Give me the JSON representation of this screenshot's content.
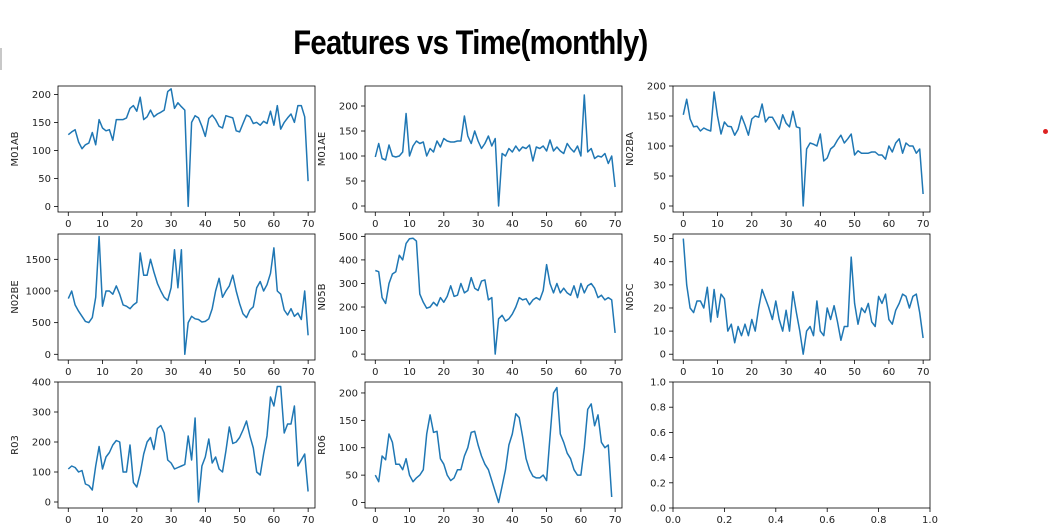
{
  "title": "Features vs Time(monthly)",
  "colors": {
    "line": "#1f77b4",
    "axis": "#000000",
    "accent_dot": "#dd2222"
  },
  "chart_data": [
    {
      "type": "line",
      "ylabel": "M01AB",
      "xlim": [
        -3,
        72
      ],
      "ylim": [
        -10,
        215
      ],
      "xticks": [
        0,
        10,
        20,
        30,
        40,
        50,
        60,
        70
      ],
      "yticks": [
        0,
        50,
        100,
        150,
        200
      ],
      "values": [
        128,
        133,
        137,
        115,
        103,
        110,
        113,
        132,
        110,
        155,
        140,
        135,
        137,
        118,
        155,
        155,
        155,
        158,
        175,
        180,
        170,
        195,
        155,
        160,
        172,
        160,
        165,
        168,
        172,
        205,
        210,
        175,
        185,
        178,
        172,
        0,
        150,
        162,
        158,
        143,
        125,
        157,
        163,
        155,
        143,
        140,
        162,
        160,
        158,
        135,
        133,
        148,
        163,
        160,
        148,
        150,
        145,
        152,
        148,
        170,
        145,
        180,
        138,
        150,
        158,
        165,
        150,
        180,
        180,
        160,
        45
      ]
    },
    {
      "type": "line",
      "ylabel": "M01AE",
      "xlim": [
        -3,
        72
      ],
      "ylim": [
        -12,
        240
      ],
      "xticks": [
        0,
        10,
        20,
        30,
        40,
        50,
        60,
        70
      ],
      "yticks": [
        0,
        50,
        100,
        150,
        200
      ],
      "values": [
        98,
        125,
        95,
        92,
        122,
        100,
        98,
        100,
        108,
        185,
        100,
        120,
        130,
        125,
        128,
        100,
        115,
        108,
        130,
        118,
        135,
        130,
        128,
        128,
        130,
        130,
        180,
        140,
        125,
        150,
        130,
        115,
        125,
        140,
        120,
        135,
        0,
        105,
        100,
        115,
        108,
        120,
        110,
        118,
        115,
        122,
        90,
        118,
        115,
        120,
        110,
        132,
        110,
        118,
        110,
        105,
        125,
        115,
        108,
        120,
        100,
        222,
        108,
        115,
        95,
        100,
        98,
        105,
        85,
        100,
        38
      ]
    },
    {
      "type": "line",
      "ylabel": "N02BA",
      "xlim": [
        -3,
        72
      ],
      "ylim": [
        -10,
        200
      ],
      "xticks": [
        0,
        10,
        20,
        30,
        40,
        50,
        60,
        70
      ],
      "yticks": [
        0,
        50,
        100,
        150,
        200
      ],
      "values": [
        152,
        178,
        145,
        132,
        133,
        125,
        130,
        127,
        125,
        190,
        150,
        120,
        140,
        133,
        132,
        118,
        128,
        150,
        135,
        118,
        145,
        150,
        148,
        170,
        140,
        148,
        148,
        138,
        128,
        152,
        138,
        132,
        158,
        132,
        130,
        0,
        95,
        105,
        103,
        100,
        120,
        75,
        80,
        95,
        100,
        110,
        118,
        105,
        112,
        120,
        85,
        92,
        88,
        88,
        88,
        90,
        90,
        85,
        85,
        78,
        100,
        90,
        105,
        112,
        88,
        105,
        100,
        100,
        88,
        95,
        20
      ]
    },
    {
      "type": "line",
      "ylabel": "N02BE",
      "xlim": [
        -3,
        72
      ],
      "ylim": [
        -90,
        1900
      ],
      "xticks": [
        0,
        10,
        20,
        30,
        40,
        50,
        60,
        70
      ],
      "yticks": [
        0,
        500,
        1000,
        1500
      ],
      "values": [
        880,
        1000,
        780,
        680,
        600,
        520,
        500,
        580,
        900,
        1860,
        760,
        1000,
        1000,
        950,
        1080,
        950,
        780,
        760,
        720,
        780,
        820,
        1600,
        1250,
        1250,
        1500,
        1300,
        1120,
        1000,
        900,
        850,
        1050,
        1650,
        1050,
        1650,
        0,
        500,
        600,
        560,
        550,
        510,
        520,
        560,
        720,
        1000,
        1200,
        900,
        1000,
        1080,
        1250,
        1000,
        800,
        640,
        580,
        700,
        750,
        1050,
        1150,
        1000,
        1100,
        1280,
        1680,
        1000,
        950,
        700,
        620,
        720,
        600,
        650,
        550,
        1000,
        300
      ]
    },
    {
      "type": "line",
      "ylabel": "N05B",
      "xlim": [
        -3,
        72
      ],
      "ylim": [
        -25,
        510
      ],
      "xticks": [
        0,
        10,
        20,
        30,
        40,
        50,
        60,
        70
      ],
      "yticks": [
        0,
        100,
        200,
        300,
        400,
        500
      ],
      "values": [
        355,
        350,
        240,
        215,
        300,
        340,
        350,
        420,
        400,
        470,
        490,
        492,
        480,
        255,
        220,
        195,
        200,
        220,
        205,
        240,
        220,
        245,
        290,
        245,
        250,
        300,
        260,
        270,
        325,
        280,
        270,
        310,
        315,
        230,
        240,
        0,
        150,
        165,
        140,
        150,
        170,
        200,
        240,
        230,
        235,
        210,
        230,
        240,
        230,
        270,
        380,
        300,
        260,
        300,
        260,
        280,
        260,
        250,
        290,
        240,
        300,
        260,
        290,
        300,
        280,
        240,
        250,
        230,
        240,
        230,
        90
      ]
    },
    {
      "type": "line",
      "ylabel": "N05C",
      "xlim": [
        -3,
        72
      ],
      "ylim": [
        -2.5,
        52
      ],
      "xticks": [
        0,
        10,
        20,
        30,
        40,
        50,
        60,
        70
      ],
      "yticks": [
        0,
        10,
        20,
        30,
        40,
        50
      ],
      "values": [
        50,
        30,
        20,
        18,
        23,
        23,
        20,
        29,
        14,
        28,
        16,
        26,
        24,
        10,
        13,
        5,
        12,
        8,
        13,
        8,
        15,
        10,
        20,
        28,
        24,
        20,
        15,
        23,
        15,
        10,
        19,
        10,
        27,
        18,
        10,
        0,
        10,
        12,
        8,
        23,
        10,
        8,
        20,
        15,
        21,
        14,
        6,
        12,
        12,
        42,
        22,
        13,
        20,
        18,
        22,
        14,
        12,
        25,
        22,
        26,
        15,
        13,
        19,
        22,
        26,
        25,
        20,
        25,
        26,
        18,
        7
      ]
    },
    {
      "type": "line",
      "ylabel": "R03",
      "xlim": [
        -3,
        72
      ],
      "ylim": [
        -20,
        400
      ],
      "xticks": [
        0,
        10,
        20,
        30,
        40,
        50,
        60,
        70
      ],
      "yticks": [
        0,
        100,
        200,
        300,
        400
      ],
      "values": [
        110,
        120,
        115,
        100,
        105,
        60,
        55,
        40,
        120,
        185,
        110,
        150,
        165,
        190,
        205,
        200,
        100,
        100,
        190,
        65,
        50,
        95,
        160,
        200,
        215,
        175,
        245,
        255,
        230,
        140,
        130,
        110,
        115,
        120,
        125,
        220,
        140,
        280,
        0,
        120,
        150,
        210,
        130,
        150,
        110,
        100,
        170,
        250,
        195,
        200,
        215,
        240,
        270,
        220,
        180,
        100,
        90,
        160,
        220,
        350,
        320,
        385,
        385,
        230,
        260,
        260,
        320,
        120,
        140,
        160,
        35
      ]
    },
    {
      "type": "line",
      "ylabel": "R06",
      "xlim": [
        -3,
        72
      ],
      "ylim": [
        -10,
        220
      ],
      "xticks": [
        0,
        10,
        20,
        30,
        40,
        50,
        60,
        70
      ],
      "yticks": [
        0,
        50,
        100,
        150,
        200
      ],
      "values": [
        50,
        38,
        85,
        78,
        125,
        110,
        70,
        70,
        60,
        80,
        50,
        38,
        45,
        50,
        60,
        125,
        160,
        128,
        130,
        80,
        70,
        50,
        40,
        45,
        60,
        60,
        85,
        100,
        128,
        130,
        105,
        85,
        70,
        60,
        40,
        20,
        0,
        30,
        60,
        105,
        125,
        162,
        155,
        120,
        80,
        60,
        48,
        45,
        45,
        50,
        40,
        120,
        200,
        210,
        125,
        110,
        90,
        80,
        60,
        50,
        50,
        100,
        170,
        180,
        140,
        160,
        110,
        100,
        105,
        10
      ]
    },
    {
      "type": "empty",
      "xlim": [
        0,
        1
      ],
      "ylim": [
        0,
        1
      ],
      "xticks": [
        "0.0",
        "0.2",
        "0.4",
        "0.6",
        "0.8",
        "1.0"
      ],
      "yticks": [
        "0.0",
        "0.2",
        "0.4",
        "0.6",
        "0.8",
        "1.0"
      ]
    }
  ]
}
